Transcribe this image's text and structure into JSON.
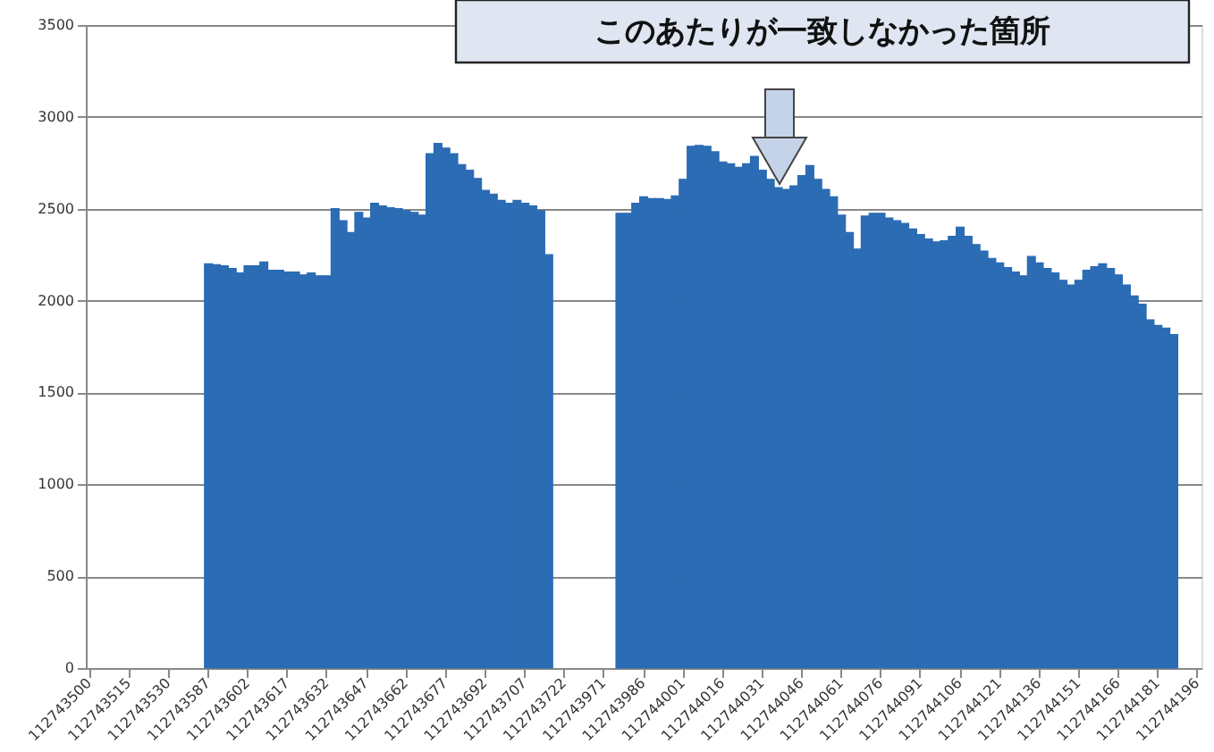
{
  "chart_data": {
    "type": "bar",
    "color": "#2b6cb4",
    "categories": [
      "112743500",
      null,
      null,
      null,
      null,
      "112743515",
      null,
      null,
      null,
      null,
      "112743530",
      null,
      null,
      null,
      null,
      "112743587",
      null,
      null,
      null,
      null,
      "112743602",
      null,
      null,
      null,
      null,
      "112743617",
      null,
      null,
      null,
      null,
      "112743632",
      null,
      null,
      null,
      null,
      "112743647",
      null,
      null,
      null,
      null,
      "112743662",
      null,
      null,
      null,
      null,
      "112743677",
      null,
      null,
      null,
      null,
      "112743692",
      null,
      null,
      null,
      null,
      "112743707",
      null,
      null,
      null,
      null,
      "112743722",
      null,
      null,
      null,
      null,
      "112743971",
      null,
      null,
      null,
      null,
      "112743986",
      null,
      null,
      null,
      null,
      "112744001",
      null,
      null,
      null,
      null,
      "112744016",
      null,
      null,
      null,
      null,
      "112744031",
      null,
      null,
      null,
      null,
      "112744046",
      null,
      null,
      null,
      null,
      "112744061",
      null,
      null,
      null,
      null,
      "112744076",
      null,
      null,
      null,
      null,
      "112744091",
      null,
      null,
      null,
      null,
      "112744106",
      null,
      null,
      null,
      null,
      "112744121",
      null,
      null,
      null,
      null,
      "112744136",
      null,
      null,
      null,
      null,
      "112744151",
      null,
      null,
      null,
      null,
      "112744166",
      null,
      null,
      null,
      null,
      "112744181",
      null,
      null,
      null,
      null,
      "112744196"
    ],
    "values": [
      null,
      null,
      null,
      null,
      null,
      null,
      null,
      null,
      null,
      null,
      null,
      null,
      null,
      null,
      null,
      2200,
      2195,
      2190,
      2175,
      2150,
      2190,
      2190,
      2210,
      2165,
      2165,
      2155,
      2155,
      2140,
      2150,
      2135,
      2135,
      2500,
      2435,
      2370,
      2480,
      2450,
      2530,
      2515,
      2505,
      2500,
      2490,
      2480,
      2465,
      2800,
      2855,
      2830,
      2800,
      2740,
      2710,
      2665,
      2600,
      2580,
      2545,
      2530,
      2545,
      2530,
      2515,
      2490,
      2250,
      null,
      null,
      null,
      null,
      null,
      null,
      null,
      null,
      2475,
      2475,
      2530,
      2565,
      2555,
      2555,
      2550,
      2570,
      2660,
      2840,
      2845,
      2840,
      2810,
      2755,
      2745,
      2725,
      2745,
      2785,
      2710,
      2660,
      2615,
      2605,
      2625,
      2680,
      2735,
      2660,
      2605,
      2565,
      2465,
      2370,
      2280,
      2460,
      2475,
      2475,
      2450,
      2435,
      2420,
      2390,
      2360,
      2335,
      2320,
      2325,
      2350,
      2400,
      2350,
      2305,
      2270,
      2230,
      2205,
      2180,
      2155,
      2135,
      2240,
      2205,
      2175,
      2150,
      2110,
      2085,
      2110,
      2165,
      2185,
      2200,
      2175,
      2140,
      2085,
      2025,
      1980,
      1895,
      1865,
      1850,
      1815,
      null,
      null,
      null
    ],
    "ylim": [
      0,
      3500
    ],
    "yticks": [
      0,
      500,
      1000,
      1500,
      2000,
      2500,
      3000,
      3500
    ],
    "grid": "y",
    "annotations": [
      "このあたりが一致しなかった箇所"
    ]
  }
}
